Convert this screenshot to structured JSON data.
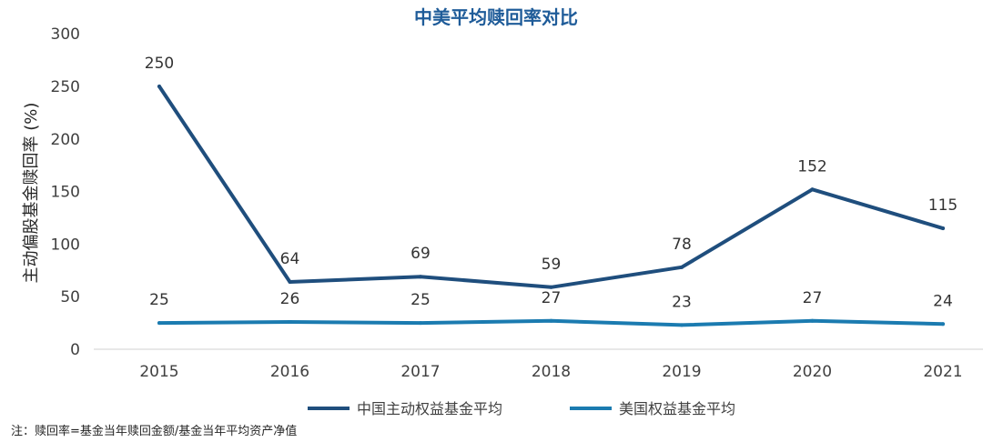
{
  "chart_data": {
    "type": "line",
    "title": "中美平均赎回率对比",
    "ylabel": "主动偏股基金赎回率 (%)",
    "xlabel": "",
    "categories": [
      "2015",
      "2016",
      "2017",
      "2018",
      "2019",
      "2020",
      "2021"
    ],
    "ylim": [
      0,
      300
    ],
    "yticks": [
      "0",
      "50",
      "100",
      "150",
      "200",
      "250",
      "300"
    ],
    "grid": false,
    "legend_position": "bottom",
    "series": [
      {
        "name": "中国主动权益基金平均",
        "color": "#1f4e7d",
        "values": [
          250,
          64,
          69,
          59,
          78,
          152,
          115
        ]
      },
      {
        "name": "美国权益基金平均",
        "color": "#1b7bb0",
        "values": [
          25,
          26,
          25,
          27,
          23,
          27,
          24
        ]
      }
    ]
  },
  "note": "注：赎回率=基金当年赎回金额/基金当年平均资产净值"
}
